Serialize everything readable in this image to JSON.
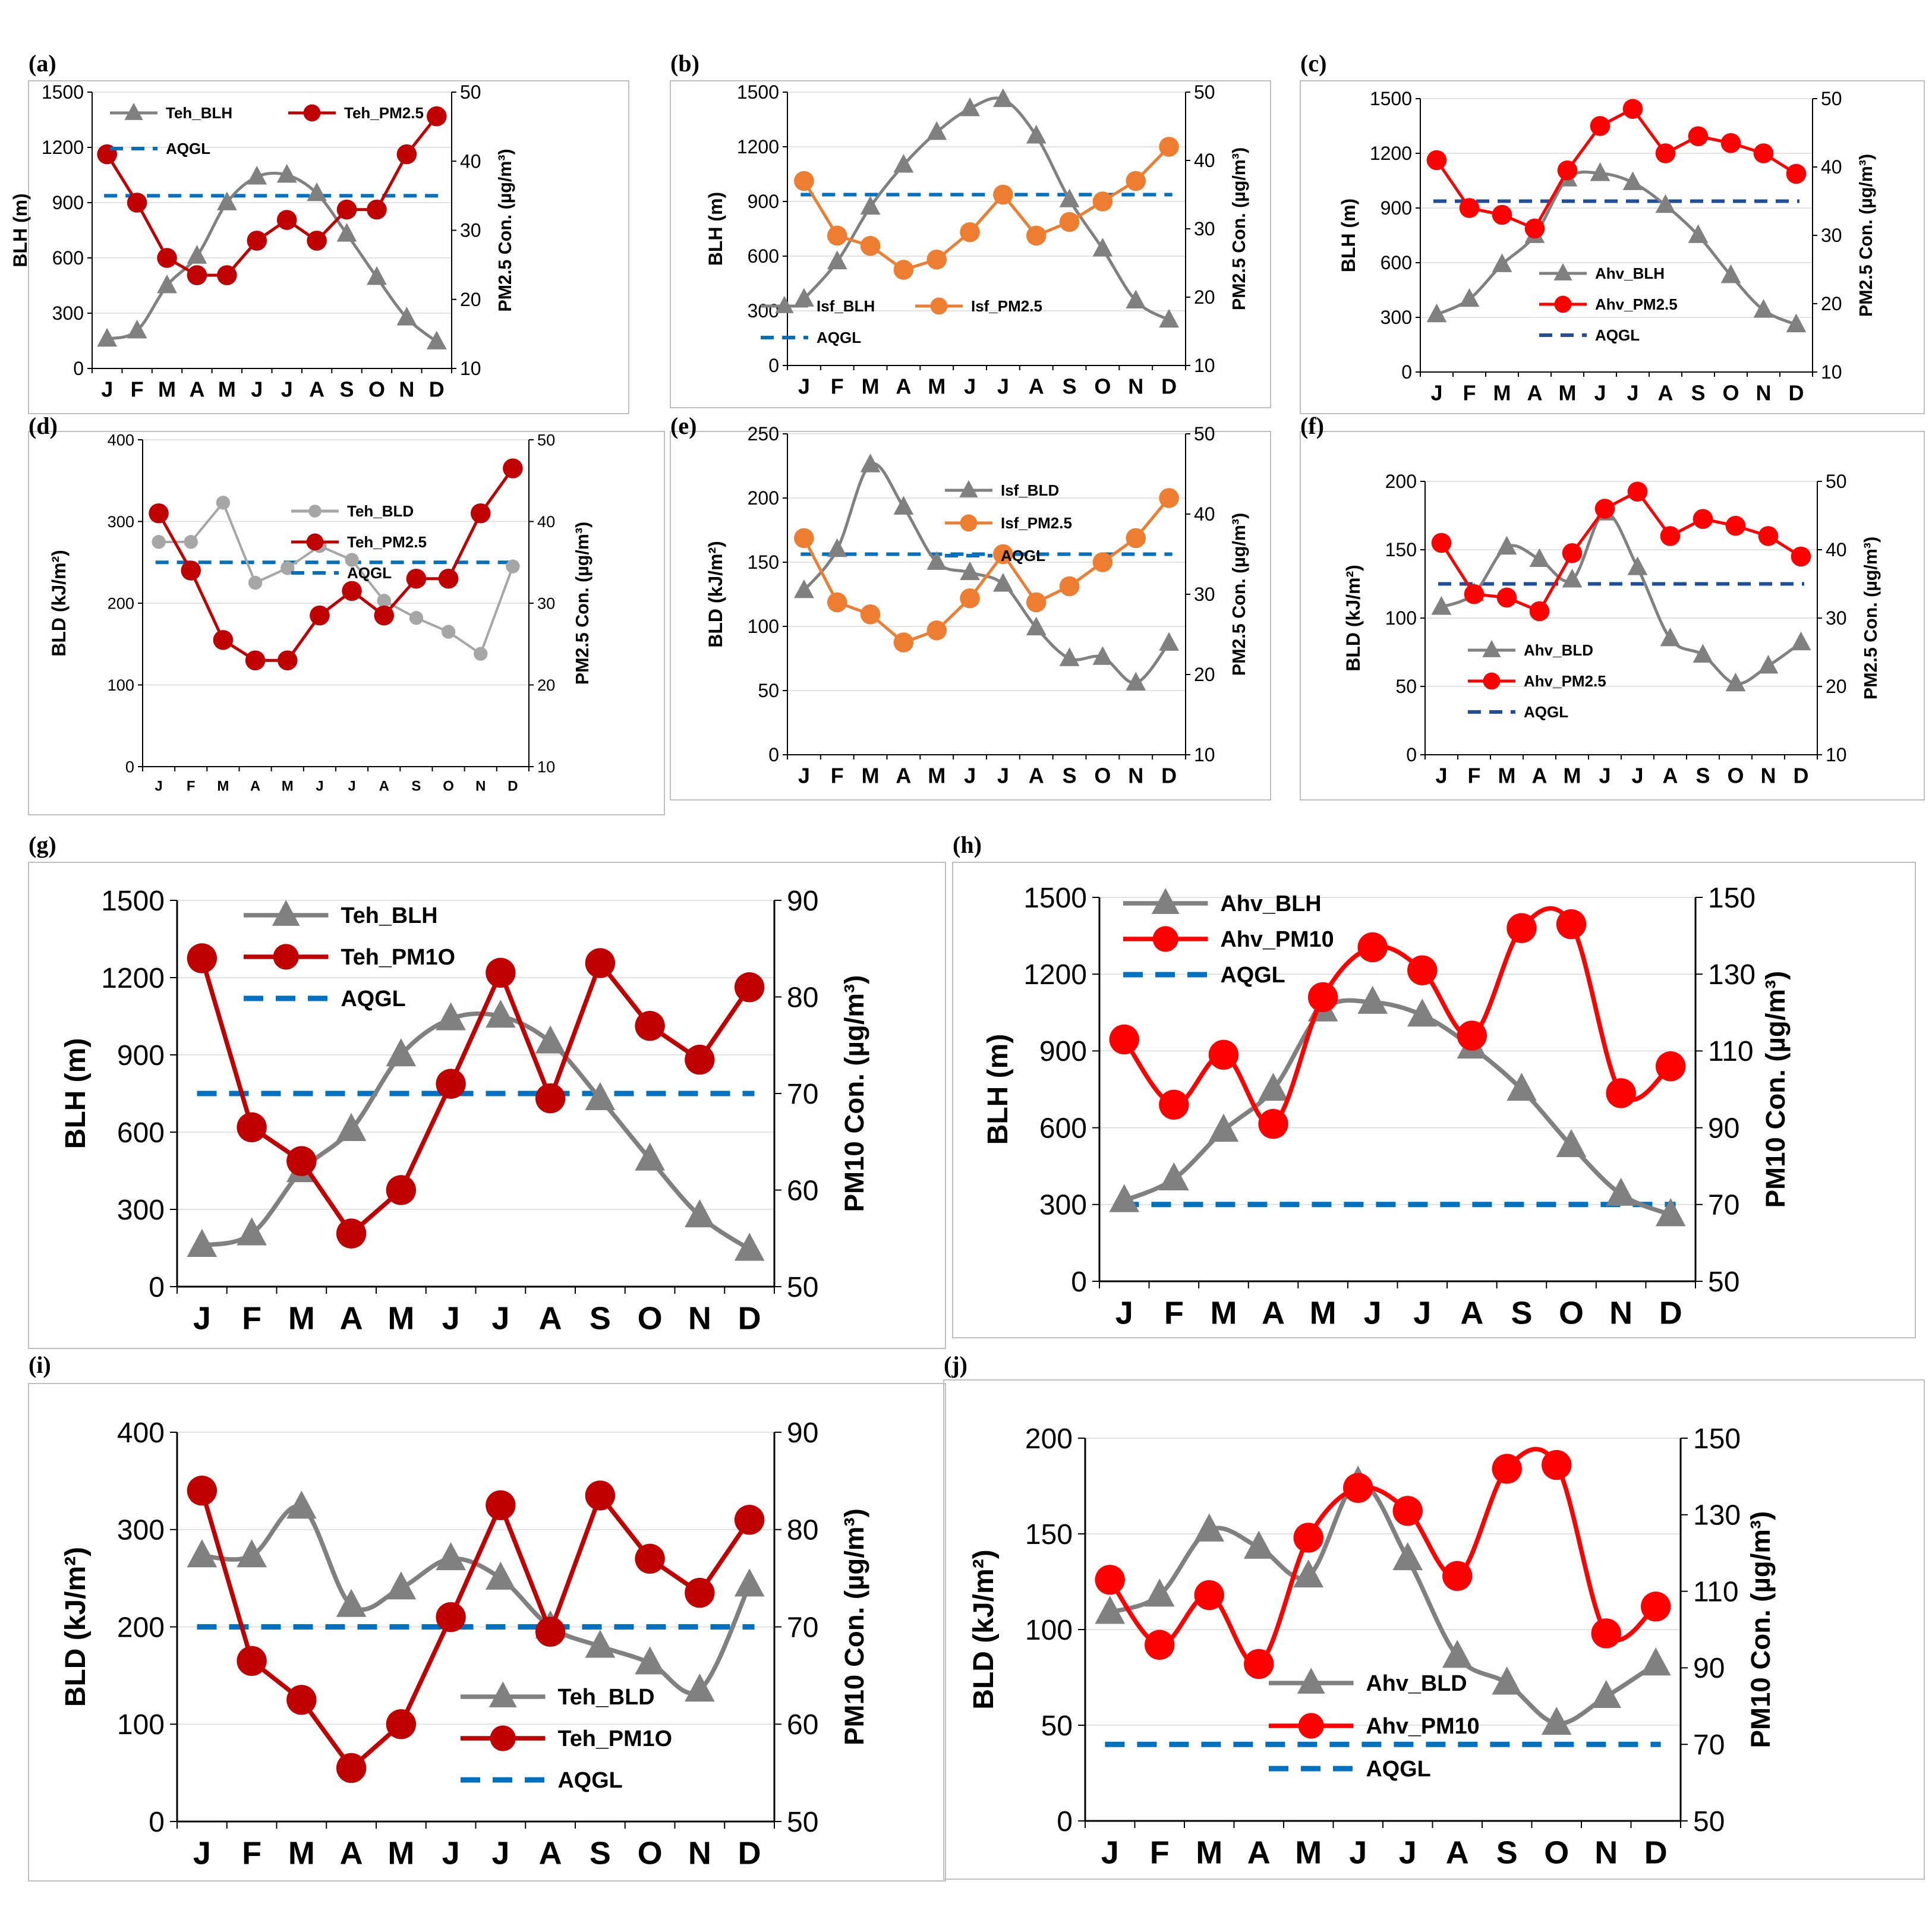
{
  "chart_data": [
    {
      "id": "a",
      "panel_label": "(a)",
      "type": "line",
      "categories": [
        "J",
        "F",
        "M",
        "A",
        "M",
        "J",
        "J",
        "A",
        "S",
        "O",
        "N",
        "D"
      ],
      "left_axis": {
        "label": "BLH (m)",
        "range": [
          0,
          1500
        ],
        "ticks": [
          "0",
          "300",
          "600",
          "900",
          "1200",
          "1500"
        ]
      },
      "right_axis": {
        "label": "PM2.5 Con. (µg/m³)",
        "range": [
          10,
          50
        ],
        "ticks": [
          "10",
          "20",
          "30",
          "40",
          "50"
        ]
      },
      "series": [
        {
          "name": "Teh_BLH",
          "axis": "left",
          "color": "#808080",
          "marker": "triangle",
          "smooth": true,
          "values": [
            160,
            205,
            450,
            610,
            900,
            1040,
            1050,
            950,
            730,
            495,
            275,
            145
          ]
        },
        {
          "name": "Teh_PM2.5",
          "axis": "right",
          "color": "#C00000",
          "marker": "circle",
          "smooth": false,
          "values": [
            41,
            34,
            26,
            23.5,
            23.5,
            28.5,
            31.5,
            28.5,
            33,
            33,
            41,
            46.5
          ]
        }
      ],
      "reference": {
        "name": "AQGL",
        "axis": "right",
        "value": 35,
        "color": "#0070C0"
      }
    },
    {
      "id": "b",
      "panel_label": "(b)",
      "type": "line",
      "categories": [
        "J",
        "F",
        "M",
        "A",
        "M",
        "J",
        "J",
        "A",
        "S",
        "O",
        "N",
        "D"
      ],
      "left_axis": {
        "label": "BLH (m)",
        "range": [
          0,
          1500
        ],
        "ticks": [
          "0",
          "300",
          "600",
          "900",
          "1200",
          "1500"
        ]
      },
      "right_axis": {
        "label": "PM2.5 Con. (µg/m³)",
        "range": [
          10,
          50
        ],
        "ticks": [
          "10",
          "20",
          "30",
          "40",
          "50"
        ]
      },
      "series": [
        {
          "name": "Isf_BLH",
          "axis": "left",
          "color": "#808080",
          "marker": "triangle",
          "smooth": true,
          "values": [
            365,
            570,
            870,
            1100,
            1280,
            1410,
            1460,
            1260,
            910,
            640,
            355,
            250
          ]
        },
        {
          "name": "Isf_PM2.5",
          "axis": "right",
          "color": "#ED7D31",
          "marker": "circle",
          "smooth": false,
          "values": [
            37,
            29,
            27.5,
            24,
            25.5,
            29.5,
            35,
            29,
            31,
            34,
            37,
            42
          ]
        }
      ],
      "reference": {
        "name": "AQGL",
        "axis": "right",
        "value": 35,
        "color": "#0070C0"
      }
    },
    {
      "id": "c",
      "panel_label": "(c)",
      "type": "line",
      "categories": [
        "J",
        "F",
        "M",
        "A",
        "M",
        "J",
        "J",
        "A",
        "S",
        "O",
        "N",
        "D"
      ],
      "left_axis": {
        "label": "BLH (m)",
        "range": [
          0,
          1500
        ],
        "ticks": [
          "0",
          "300",
          "600",
          "900",
          "1200",
          "1500"
        ]
      },
      "right_axis": {
        "label": "PM2.5 Con. (µg/m³)",
        "range": [
          10,
          50
        ],
        "ticks": [
          "10",
          "20",
          "30",
          "40",
          "50"
        ]
      },
      "series": [
        {
          "name": "Ahv_BLH",
          "axis": "left",
          "color": "#808080",
          "marker": "triangle",
          "smooth": true,
          "values": [
            315,
            400,
            590,
            750,
            1060,
            1090,
            1040,
            915,
            750,
            530,
            340,
            260
          ]
        },
        {
          "name": "Ahv_PM2.5",
          "axis": "right",
          "color": "#FF0000",
          "marker": "circle",
          "smooth": false,
          "values": [
            41,
            34,
            33,
            31,
            39.5,
            46,
            48.5,
            42,
            44.5,
            43.5,
            42,
            39
          ]
        }
      ],
      "reference": {
        "name": "AQGL",
        "axis": "right",
        "value": 35,
        "color": "#1F4E9D"
      }
    },
    {
      "id": "d",
      "panel_label": "(d)",
      "type": "line",
      "categories": [
        "J",
        "F",
        "M",
        "A",
        "M",
        "J",
        "J",
        "A",
        "S",
        "O",
        "N",
        "D"
      ],
      "left_axis": {
        "label": "BLD (kJ/m²)",
        "range": [
          0,
          400
        ],
        "ticks": [
          "0",
          "100",
          "200",
          "300",
          "400"
        ]
      },
      "right_axis": {
        "label": "PM2.5 Con. (µg/m³)",
        "range": [
          10,
          50
        ],
        "ticks": [
          "10",
          "20",
          "30",
          "40",
          "50"
        ]
      },
      "series": [
        {
          "name": "Teh_BLD",
          "axis": "left",
          "color": "#A6A6A6",
          "marker": "circle-small",
          "smooth": false,
          "values": [
            275,
            275,
            323,
            225,
            243,
            270,
            253,
            203,
            182,
            165,
            138,
            245
          ]
        },
        {
          "name": "Teh_PM2.5",
          "axis": "right",
          "color": "#C00000",
          "marker": "circle",
          "smooth": false,
          "values": [
            41,
            34,
            25.5,
            23,
            23,
            28.5,
            31.5,
            28.5,
            33,
            33,
            41,
            46.5
          ]
        }
      ],
      "reference": {
        "name": "AQGL",
        "axis": "right",
        "value": 35,
        "color": "#0070C0"
      }
    },
    {
      "id": "e",
      "panel_label": "(e)",
      "type": "line",
      "categories": [
        "J",
        "F",
        "M",
        "A",
        "M",
        "J",
        "J",
        "A",
        "S",
        "O",
        "N",
        "D"
      ],
      "left_axis": {
        "label": "BLD (kJ/m²)",
        "range": [
          0,
          250
        ],
        "ticks": [
          "0",
          "50",
          "100",
          "150",
          "200",
          "250"
        ]
      },
      "right_axis": {
        "label": "PM2.5 Con. (µg/m³)",
        "range": [
          10,
          50
        ],
        "ticks": [
          "10",
          "20",
          "30",
          "40",
          "50"
        ]
      },
      "series": [
        {
          "name": "Isf_BLD",
          "axis": "left",
          "color": "#808080",
          "marker": "triangle",
          "smooth": true,
          "values": [
            128,
            160,
            226,
            193,
            150,
            142,
            133,
            99,
            75,
            76,
            56,
            87
          ]
        },
        {
          "name": "Isf_PM2.5",
          "axis": "right",
          "color": "#ED7D31",
          "marker": "circle",
          "smooth": false,
          "values": [
            37,
            29,
            27.5,
            24,
            25.5,
            29.5,
            35,
            29,
            31,
            34,
            37,
            42
          ]
        }
      ],
      "reference": {
        "name": "AQGL",
        "axis": "right",
        "value": 35,
        "color": "#0070C0"
      }
    },
    {
      "id": "f",
      "panel_label": "(f)",
      "type": "line",
      "categories": [
        "J",
        "F",
        "M",
        "A",
        "M",
        "J",
        "J",
        "A",
        "S",
        "O",
        "N",
        "D"
      ],
      "left_axis": {
        "label": "BLD (kJ/m²)",
        "range": [
          0,
          200
        ],
        "ticks": [
          "0",
          "50",
          "100",
          "150",
          "200"
        ]
      },
      "right_axis": {
        "label": "PM2.5 Con. (µg/m³)",
        "range": [
          10,
          50
        ],
        "ticks": [
          "10",
          "20",
          "30",
          "40",
          "50"
        ]
      },
      "series": [
        {
          "name": "Ahv_BLD",
          "axis": "left",
          "color": "#808080",
          "marker": "triangle",
          "smooth": true,
          "values": [
            108,
            118,
            152,
            143,
            128,
            177,
            137,
            85,
            73,
            52,
            65,
            82
          ]
        },
        {
          "name": "Ahv_PM2.5",
          "axis": "right",
          "color": "#FF0000",
          "marker": "circle",
          "smooth": false,
          "values": [
            41,
            33.5,
            33,
            31,
            39.5,
            46,
            48.5,
            42,
            44.5,
            43.5,
            42,
            39
          ]
        }
      ],
      "reference": {
        "name": "AQGL",
        "axis": "right",
        "value": 35,
        "color": "#1F4E9D"
      }
    },
    {
      "id": "g",
      "panel_label": "(g)",
      "type": "line",
      "categories": [
        "J",
        "F",
        "M",
        "A",
        "M",
        "J",
        "J",
        "A",
        "S",
        "O",
        "N",
        "D"
      ],
      "left_axis": {
        "label": "BLH (m)",
        "range": [
          0,
          1500
        ],
        "ticks": [
          "0",
          "300",
          "600",
          "900",
          "1200",
          "1500"
        ]
      },
      "right_axis": {
        "label": "PM10 Con. (µg/m³)",
        "range": [
          50,
          90
        ],
        "ticks": [
          "50",
          "60",
          "70",
          "80",
          "90"
        ]
      },
      "series": [
        {
          "name": "Teh_BLH",
          "axis": "left",
          "color": "#808080",
          "marker": "triangle",
          "smooth": true,
          "values": [
            160,
            205,
            450,
            610,
            900,
            1040,
            1050,
            950,
            730,
            495,
            275,
            145
          ]
        },
        {
          "name": "Teh_PM1O",
          "axis": "right",
          "color": "#C00000",
          "marker": "circle",
          "smooth": false,
          "values": [
            84,
            66.5,
            63,
            55.5,
            60,
            71,
            82.5,
            69.5,
            83.5,
            77,
            73.5,
            81
          ]
        }
      ],
      "reference": {
        "name": "AQGL",
        "axis": "right",
        "value": 70,
        "color": "#0070C0"
      }
    },
    {
      "id": "h",
      "panel_label": "(h)",
      "type": "line",
      "categories": [
        "J",
        "F",
        "M",
        "A",
        "M",
        "J",
        "J",
        "A",
        "S",
        "O",
        "N",
        "D"
      ],
      "left_axis": {
        "label": "BLH (m)",
        "range": [
          0,
          1500
        ],
        "ticks": [
          "0",
          "300",
          "600",
          "900",
          "1200",
          "1500"
        ]
      },
      "right_axis": {
        "label": "PM10 Con. (µg/m³)",
        "range": [
          50,
          150
        ],
        "ticks": [
          "50",
          "70",
          "90",
          "110",
          "130",
          "150"
        ]
      },
      "series": [
        {
          "name": "Ahv_BLH",
          "axis": "left",
          "color": "#808080",
          "marker": "triangle",
          "smooth": true,
          "values": [
            315,
            400,
            590,
            750,
            1060,
            1090,
            1040,
            915,
            750,
            530,
            340,
            260
          ]
        },
        {
          "name": "Ahv_PM10",
          "axis": "right",
          "color": "#FF0000",
          "marker": "circle",
          "smooth": true,
          "values": [
            113,
            96,
            109,
            91,
            124,
            137,
            131,
            114,
            142,
            143,
            99,
            106
          ]
        }
      ],
      "reference": {
        "name": "AQGL",
        "axis": "right",
        "value": 70,
        "color": "#0070C0"
      }
    },
    {
      "id": "i",
      "panel_label": "(i)",
      "type": "line",
      "categories": [
        "J",
        "F",
        "M",
        "A",
        "M",
        "J",
        "J",
        "A",
        "S",
        "O",
        "N",
        "D"
      ],
      "left_axis": {
        "label": "BLD (kJ/m²)",
        "range": [
          0,
          400
        ],
        "ticks": [
          "0",
          "100",
          "200",
          "300",
          "400"
        ]
      },
      "right_axis": {
        "label": "PM10 Con. (µg/m³)",
        "range": [
          50,
          90
        ],
        "ticks": [
          "50",
          "60",
          "70",
          "80",
          "90"
        ]
      },
      "series": [
        {
          "name": "Teh_BLD",
          "axis": "left",
          "color": "#808080",
          "marker": "triangle",
          "smooth": true,
          "values": [
            273,
            273,
            323,
            222,
            240,
            270,
            250,
            200,
            180,
            163,
            135,
            243
          ]
        },
        {
          "name": "Teh_PM1O",
          "axis": "right",
          "color": "#C00000",
          "marker": "circle",
          "smooth": false,
          "values": [
            84,
            66.5,
            62.5,
            55.5,
            60,
            71,
            82.5,
            69.5,
            83.5,
            77,
            73.5,
            81
          ]
        }
      ],
      "reference": {
        "name": "AQGL",
        "axis": "right",
        "value": 70,
        "color": "#0070C0"
      }
    },
    {
      "id": "j",
      "panel_label": "(j)",
      "type": "line",
      "categories": [
        "J",
        "F",
        "M",
        "A",
        "M",
        "J",
        "J",
        "A",
        "S",
        "O",
        "N",
        "D"
      ],
      "left_axis": {
        "label": "BLD (kJ/m²)",
        "range": [
          0,
          200
        ],
        "ticks": [
          "0",
          "50",
          "100",
          "150",
          "200"
        ]
      },
      "right_axis": {
        "label": "PM10 Con. (µg/m³)",
        "range": [
          50,
          150
        ],
        "ticks": [
          "50",
          "70",
          "90",
          "110",
          "130",
          "150"
        ]
      },
      "series": [
        {
          "name": "Ahv_BLD",
          "axis": "left",
          "color": "#808080",
          "marker": "triangle",
          "smooth": true,
          "values": [
            109,
            118,
            152,
            143,
            128,
            177,
            137,
            86,
            72,
            51,
            65,
            82
          ]
        },
        {
          "name": "Ahv_PM10",
          "axis": "right",
          "color": "#FF0000",
          "marker": "circle",
          "smooth": true,
          "values": [
            113,
            96,
            109,
            91,
            124,
            137,
            131,
            114,
            142,
            143,
            99,
            106
          ]
        }
      ],
      "reference": {
        "name": "AQGL",
        "axis": "right",
        "value": 70,
        "color": "#0070C0"
      }
    }
  ]
}
